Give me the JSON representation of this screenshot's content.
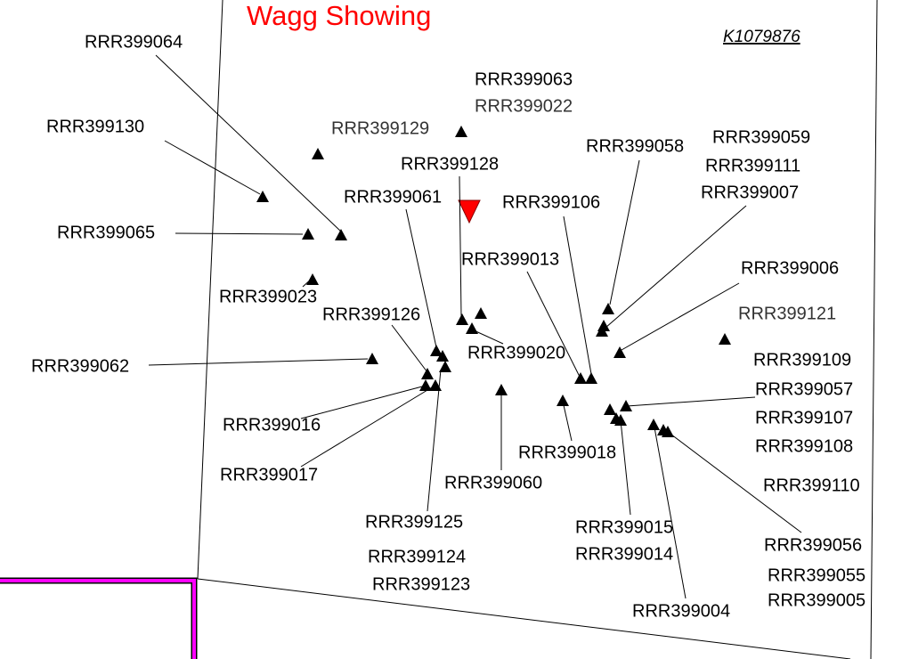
{
  "title": "Wagg Showing",
  "claim": "K1079876",
  "labels": [
    "RRR399064",
    "RRR399063",
    "RRR399022",
    "RRR399129",
    "RRR399130",
    "RRR399058",
    "RRR399059",
    "RRR399111",
    "RRR399128",
    "RRR399007",
    "RRR399061",
    "RRR399106",
    "RRR399065",
    "RRR399013",
    "RRR399006",
    "RRR399023",
    "RRR399126",
    "RRR399121",
    "RRR399020",
    "RRR399109",
    "RRR399062",
    "RRR399057",
    "RRR399107",
    "RRR399016",
    "RRR399108",
    "RRR399018",
    "RRR399017",
    "RRR399060",
    "RRR399110",
    "RRR399125",
    "RRR399015",
    "RRR399056",
    "RRR399014",
    "RRR399124",
    "RRR399055",
    "RRR399123",
    "RRR399005",
    "RRR399004"
  ]
}
